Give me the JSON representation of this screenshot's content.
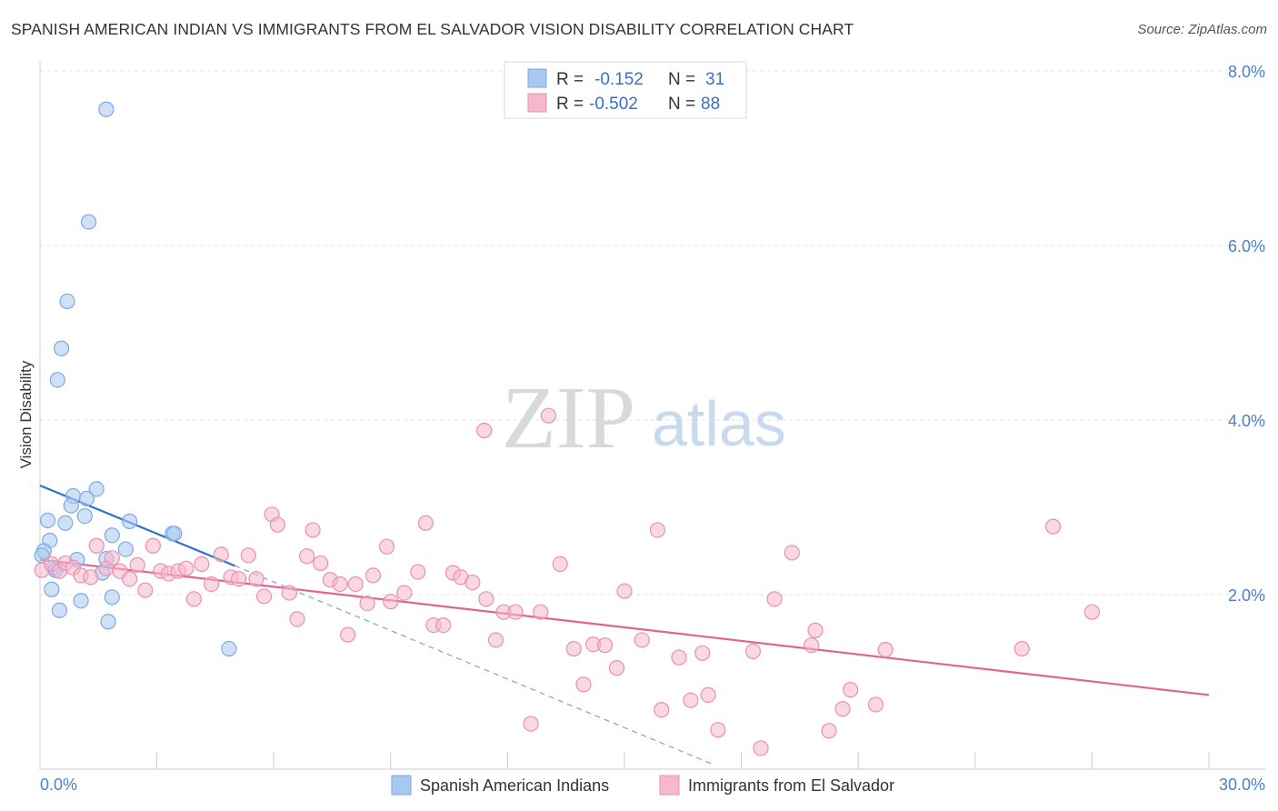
{
  "header": {
    "title": "SPANISH AMERICAN INDIAN VS IMMIGRANTS FROM EL SALVADOR VISION DISABILITY CORRELATION CHART",
    "source": "Source: ZipAtlas.com"
  },
  "watermark": {
    "zip": "ZIP",
    "atlas": "atlas"
  },
  "legend": {
    "r_label": "R =",
    "n_label": "N =",
    "rows": [
      {
        "r": "-0.152",
        "n": "31",
        "color": "#a9c8f0"
      },
      {
        "r": "-0.502",
        "n": "88",
        "color": "#f6b8cc"
      }
    ]
  },
  "chart_data": {
    "type": "scatter",
    "title": "SPANISH AMERICAN INDIAN VS IMMIGRANTS FROM EL SALVADOR VISION DISABILITY CORRELATION CHART",
    "xlabel": "",
    "ylabel": "Vision Disability",
    "xlim": [
      0,
      30
    ],
    "ylim": [
      0,
      8
    ],
    "x_tick_labels": [
      "0.0%",
      "30.0%"
    ],
    "y_ticks": [
      2,
      4,
      6,
      8
    ],
    "y_tick_labels": [
      "2.0%",
      "4.0%",
      "6.0%",
      "8.0%"
    ],
    "grid": true,
    "legend_position": "top-center",
    "series": [
      {
        "name": "Spanish American Indians",
        "color": "#7aaae6",
        "fill": "#a9c8f0",
        "points": [
          [
            1.7,
            7.56
          ],
          [
            1.25,
            6.27
          ],
          [
            0.7,
            5.36
          ],
          [
            0.55,
            4.82
          ],
          [
            0.45,
            4.46
          ],
          [
            1.45,
            3.21
          ],
          [
            0.85,
            3.13
          ],
          [
            1.2,
            3.1
          ],
          [
            0.8,
            3.02
          ],
          [
            1.15,
            2.9
          ],
          [
            0.2,
            2.85
          ],
          [
            0.65,
            2.82
          ],
          [
            2.3,
            2.84
          ],
          [
            3.4,
            2.7
          ],
          [
            3.45,
            2.7
          ],
          [
            1.85,
            2.68
          ],
          [
            0.25,
            2.62
          ],
          [
            0.1,
            2.5
          ],
          [
            2.2,
            2.52
          ],
          [
            1.7,
            2.41
          ],
          [
            0.95,
            2.4
          ],
          [
            0.05,
            2.45
          ],
          [
            0.35,
            2.31
          ],
          [
            1.6,
            2.25
          ],
          [
            0.3,
            2.06
          ],
          [
            1.05,
            1.93
          ],
          [
            1.85,
            1.97
          ],
          [
            0.5,
            1.82
          ],
          [
            1.75,
            1.69
          ],
          [
            4.85,
            1.38
          ],
          [
            0.4,
            2.28
          ]
        ],
        "trend": {
          "x": [
            0,
            5.0
          ],
          "y": [
            3.25,
            2.33
          ]
        }
      },
      {
        "name": "Immigrants from El Salvador",
        "color": "#ec8fb0",
        "fill": "#f6b8cc",
        "points": [
          [
            0.05,
            2.28
          ],
          [
            0.3,
            2.35
          ],
          [
            0.5,
            2.27
          ],
          [
            0.65,
            2.36
          ],
          [
            0.85,
            2.31
          ],
          [
            1.05,
            2.22
          ],
          [
            1.3,
            2.2
          ],
          [
            1.45,
            2.56
          ],
          [
            1.7,
            2.3
          ],
          [
            1.85,
            2.42
          ],
          [
            2.05,
            2.27
          ],
          [
            2.3,
            2.18
          ],
          [
            2.5,
            2.34
          ],
          [
            2.7,
            2.05
          ],
          [
            2.9,
            2.56
          ],
          [
            3.1,
            2.27
          ],
          [
            3.3,
            2.24
          ],
          [
            3.55,
            2.27
          ],
          [
            3.75,
            2.3
          ],
          [
            3.95,
            1.95
          ],
          [
            4.15,
            2.35
          ],
          [
            4.4,
            2.12
          ],
          [
            4.65,
            2.46
          ],
          [
            4.9,
            2.2
          ],
          [
            5.1,
            2.18
          ],
          [
            5.35,
            2.45
          ],
          [
            5.55,
            2.18
          ],
          [
            5.75,
            1.98
          ],
          [
            5.95,
            2.92
          ],
          [
            6.1,
            2.8
          ],
          [
            6.4,
            2.02
          ],
          [
            6.6,
            1.72
          ],
          [
            6.85,
            2.44
          ],
          [
            7.0,
            2.74
          ],
          [
            7.2,
            2.36
          ],
          [
            7.45,
            2.17
          ],
          [
            7.7,
            2.12
          ],
          [
            7.9,
            1.54
          ],
          [
            8.1,
            2.12
          ],
          [
            8.4,
            1.9
          ],
          [
            8.55,
            2.22
          ],
          [
            8.9,
            2.55
          ],
          [
            9.0,
            1.92
          ],
          [
            9.35,
            2.02
          ],
          [
            9.7,
            2.26
          ],
          [
            9.9,
            2.82
          ],
          [
            10.1,
            1.65
          ],
          [
            10.35,
            1.65
          ],
          [
            10.6,
            2.25
          ],
          [
            10.8,
            2.2
          ],
          [
            11.1,
            2.14
          ],
          [
            11.45,
            1.95
          ],
          [
            11.7,
            1.48
          ],
          [
            11.9,
            1.8
          ],
          [
            12.2,
            1.8
          ],
          [
            11.4,
            3.88
          ],
          [
            13.05,
            4.05
          ],
          [
            12.6,
            0.52
          ],
          [
            12.85,
            1.8
          ],
          [
            13.35,
            2.35
          ],
          [
            13.7,
            1.38
          ],
          [
            13.95,
            0.97
          ],
          [
            14.2,
            1.43
          ],
          [
            14.5,
            1.42
          ],
          [
            14.8,
            1.16
          ],
          [
            15.0,
            2.04
          ],
          [
            15.45,
            1.48
          ],
          [
            15.85,
            2.74
          ],
          [
            15.95,
            0.68
          ],
          [
            16.4,
            1.28
          ],
          [
            16.7,
            0.79
          ],
          [
            17.0,
            1.33
          ],
          [
            17.15,
            0.85
          ],
          [
            17.4,
            0.45
          ],
          [
            18.3,
            1.35
          ],
          [
            18.5,
            0.24
          ],
          [
            18.85,
            1.95
          ],
          [
            19.3,
            2.48
          ],
          [
            19.8,
            1.42
          ],
          [
            19.9,
            1.59
          ],
          [
            20.25,
            0.44
          ],
          [
            20.6,
            0.69
          ],
          [
            20.8,
            0.91
          ],
          [
            21.45,
            0.74
          ],
          [
            21.7,
            1.37
          ],
          [
            25.2,
            1.38
          ],
          [
            26.0,
            2.78
          ],
          [
            27.0,
            1.8
          ]
        ],
        "trend": {
          "x": [
            0,
            30
          ],
          "y": [
            2.4,
            0.85
          ]
        },
        "trend_extension": {
          "x": [
            5.0,
            17.3
          ],
          "y": [
            2.33,
            0.05
          ]
        }
      }
    ]
  },
  "bottom_legend": [
    {
      "label": "Spanish American Indians",
      "color": "#a9c8f0"
    },
    {
      "label": "Immigrants from El Salvador",
      "color": "#f6b8cc"
    }
  ]
}
